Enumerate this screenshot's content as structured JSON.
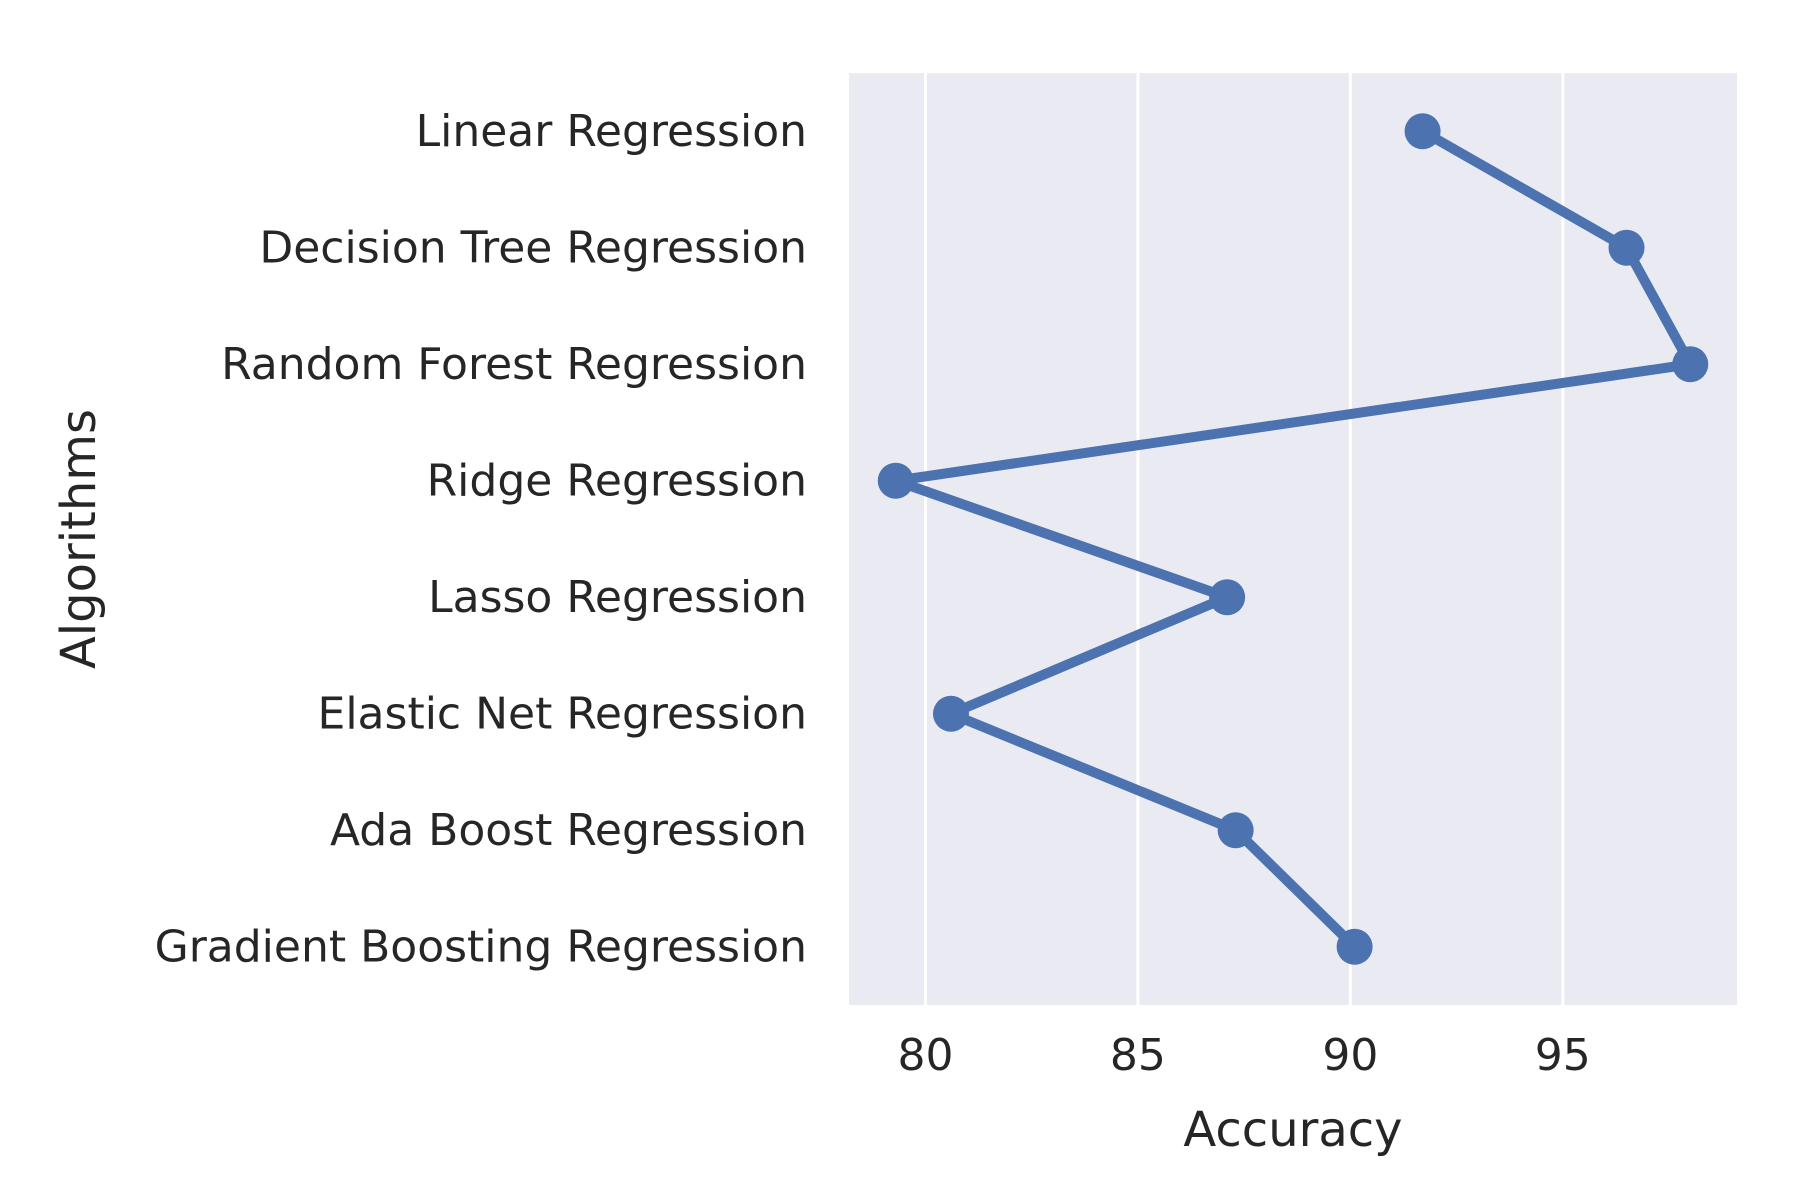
{
  "chart_data": {
    "type": "line",
    "orientation": "horizontal",
    "title": "",
    "xlabel": "Accuracy",
    "ylabel": "Algorithms",
    "categories": [
      "Linear Regression",
      "Decision Tree Regression",
      "Random Forest Regression",
      "Ridge Regression",
      "Lasso Regression",
      "Elastic Net Regression",
      "Ada Boost Regression",
      "Gradient Boosting Regression"
    ],
    "values": [
      91.7,
      96.5,
      98.0,
      79.3,
      87.1,
      80.6,
      87.3,
      90.1
    ],
    "xlim": [
      78.2,
      99.1
    ],
    "xticks": [
      "80",
      "85",
      "90",
      "95"
    ],
    "grid": true,
    "legend": "none",
    "colors": {
      "series": "#4c72b0",
      "plot_background": "#eaeaf2",
      "grid": "#ffffff",
      "text": "#262626"
    }
  }
}
